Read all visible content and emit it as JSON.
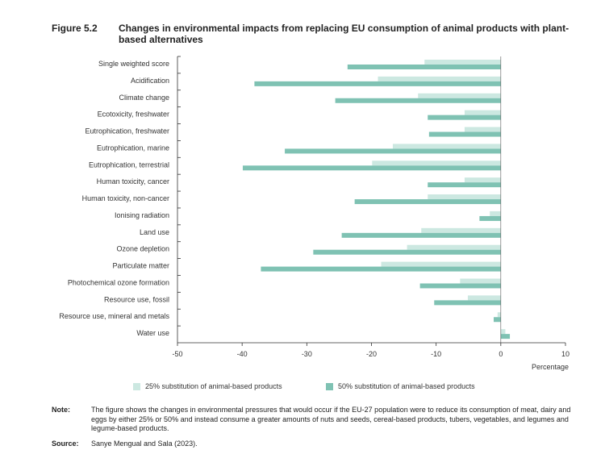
{
  "figure": {
    "number": "Figure 5.2",
    "title": "Changes in environmental impacts from replacing EU consumption of animal products with plant-based alternatives"
  },
  "note": {
    "label": "Note:",
    "text": "The figure shows the changes in environmental pressures that would occur if the EU-27 population were to reduce its consumption of meat, dairy and eggs by either 25% or 50% and instead consume a greater amounts of nuts and seeds, cereal-based products, tubers, vegetables, and legumes and legume-based products."
  },
  "source": {
    "label": "Source:",
    "text": "Sanye Mengual and Sala (2023)."
  },
  "colors": {
    "series_25": "#cce8e1",
    "series_50": "#7fc2b3",
    "axis": "#333333"
  },
  "chart_data": {
    "type": "bar",
    "orientation": "horizontal",
    "title": "",
    "xlabel": "Percentage",
    "ylabel": "",
    "xlim": [
      -50,
      10
    ],
    "xticks": [
      -50,
      -40,
      -30,
      -20,
      -10,
      0,
      10
    ],
    "legend_position": "bottom",
    "grid": false,
    "categories": [
      "Single weighted score",
      "Acidification",
      "Climate change",
      "Ecotoxicity, freshwater",
      "Eutrophication, freshwater",
      "Eutrophication, marine",
      "Eutrophication, terrestrial",
      "Human toxicity, cancer",
      "Human toxicity, non-cancer",
      "Ionising radiation",
      "Land use",
      "Ozone depletion",
      "Particulate matter",
      "Photochemical ozone formation",
      "Resource use, fossil",
      "Resource use, mineral and metals",
      "Water use"
    ],
    "series": [
      {
        "name": "25% substitution of animal-based products",
        "values": [
          -11.8,
          -19.0,
          -12.8,
          -5.6,
          -5.6,
          -16.7,
          -19.9,
          -5.6,
          -11.3,
          -1.7,
          -12.3,
          -14.5,
          -18.5,
          -6.3,
          -5.1,
          -0.5,
          0.7
        ]
      },
      {
        "name": "50% substitution of animal-based products",
        "values": [
          -23.7,
          -38.1,
          -25.6,
          -11.3,
          -11.1,
          -33.4,
          -39.9,
          -11.3,
          -22.6,
          -3.3,
          -24.6,
          -29.0,
          -37.1,
          -12.5,
          -10.3,
          -1.1,
          1.4
        ]
      }
    ]
  }
}
